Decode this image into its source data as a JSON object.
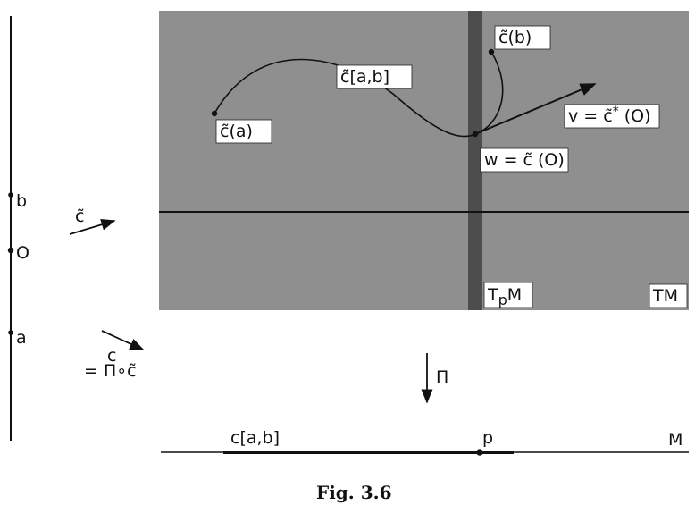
{
  "colors": {
    "tangent_bundle_fill": "#8f8f8f",
    "fiber_strip": "#4d4d4d",
    "ink": "#111111"
  },
  "interval": {
    "b_label": "b",
    "o_label": "O",
    "a_label": "a"
  },
  "maps": {
    "lift_symbol": "c̃",
    "proj_c": "c",
    "proj_comp": "= Π∘c̃"
  },
  "tangent_bundle": {
    "label": "TM",
    "fiber_label": "T",
    "fiber_sub": "p",
    "fiber_M": "M",
    "curve_label": "c̃[a,b]",
    "start_label": "c̃(a)",
    "end_label": "c̃(b)",
    "w_label": "w = c̃ (O)",
    "v_label_pre": "v = c̃",
    "v_label_sup": "*",
    "v_label_post": " (O)"
  },
  "projection": {
    "label": "Π"
  },
  "manifold": {
    "label": "M",
    "segment_label": "c[a,b]",
    "point_label": "p"
  },
  "caption": "Fig. 3.6"
}
